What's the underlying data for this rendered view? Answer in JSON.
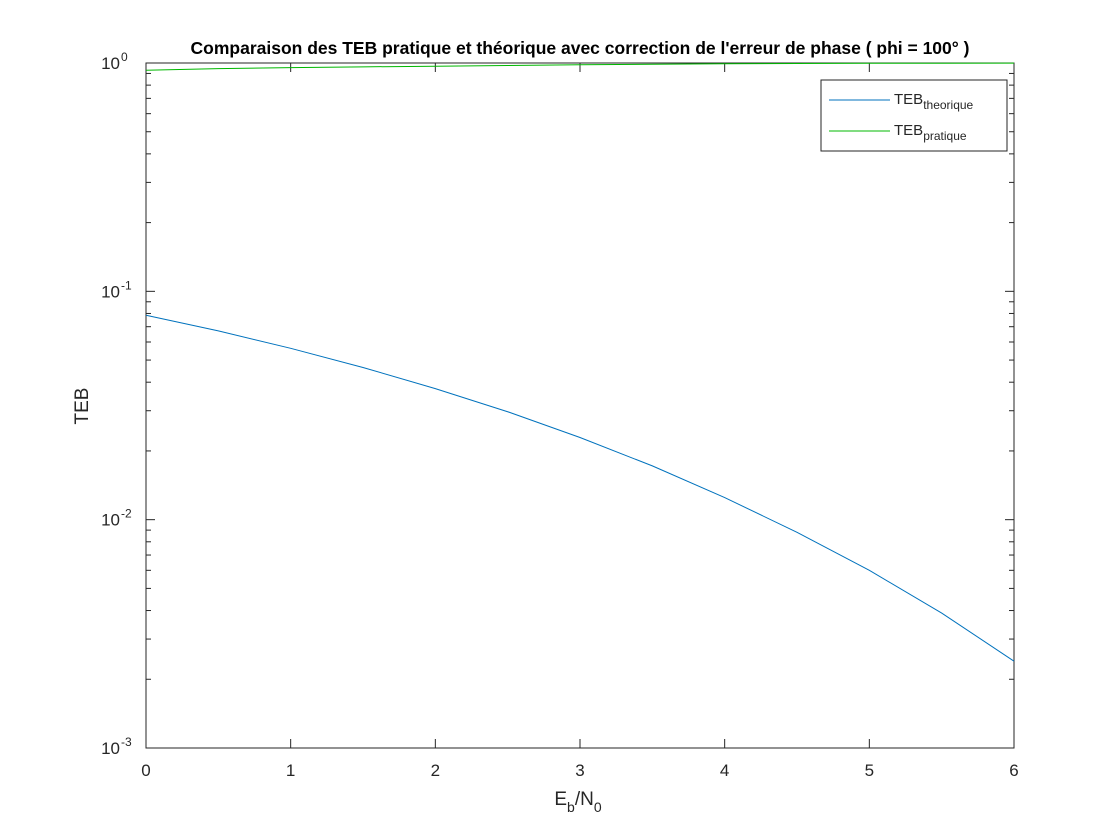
{
  "chart_data": {
    "type": "line",
    "title": "Comparaison des TEB pratique et théorique avec correction de l'erreur de phase ( phi = 100° )",
    "xlabel": {
      "main": "E",
      "sub1": "b",
      "mid": "/N",
      "sub2": "0"
    },
    "ylabel": "TEB",
    "xlim": [
      0,
      6
    ],
    "ylim": [
      0.001,
      1
    ],
    "y_scale": "log",
    "x_ticks": [
      0,
      1,
      2,
      3,
      4,
      5,
      6
    ],
    "x_tick_labels": [
      "0",
      "1",
      "2",
      "3",
      "4",
      "5",
      "6"
    ],
    "y_ticks": [
      {
        "value": 1,
        "base": "10",
        "exp": "0"
      },
      {
        "value": 0.1,
        "base": "10",
        "exp": "-1"
      },
      {
        "value": 0.01,
        "base": "10",
        "exp": "-2"
      },
      {
        "value": 0.001,
        "base": "10",
        "exp": "-3"
      }
    ],
    "grid": false,
    "legend_position": "top-right",
    "x": [
      0,
      0.5,
      1,
      1.5,
      2,
      2.5,
      3,
      3.5,
      4,
      4.5,
      5,
      5.5,
      6
    ],
    "series": [
      {
        "name": "TEB",
        "name_sub": "theorique",
        "color": "#0072BD",
        "values": [
          0.0786,
          0.0671,
          0.0563,
          0.0464,
          0.0375,
          0.0297,
          0.0229,
          0.0172,
          0.0125,
          0.0088,
          0.006,
          0.0039,
          0.0024
        ]
      },
      {
        "name": "TEB",
        "name_sub": "pratique",
        "color": "#00B800",
        "values": [
          0.93,
          0.945,
          0.955,
          0.962,
          0.968,
          0.975,
          0.982,
          0.988,
          0.992,
          0.995,
          0.997,
          0.998,
          0.999
        ]
      }
    ]
  }
}
